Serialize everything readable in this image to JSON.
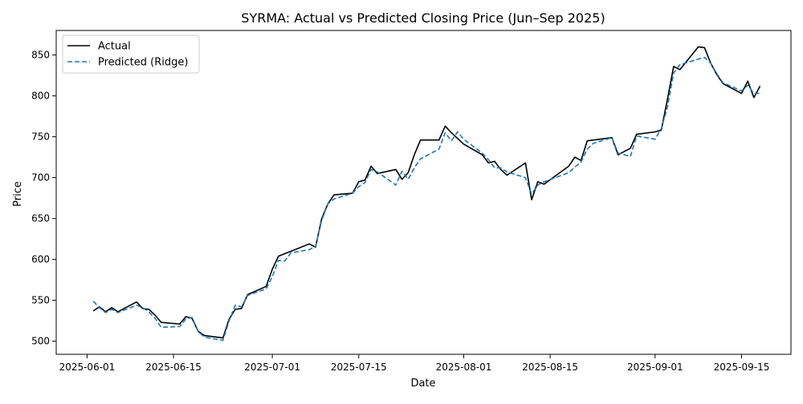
{
  "chart_data": {
    "type": "line",
    "title": "SYRMA: Actual vs Predicted Closing Price (Jun–Sep 2025)",
    "xlabel": "Date",
    "ylabel": "Price",
    "x_ticks": [
      "2025-06-01",
      "2025-06-15",
      "2025-07-01",
      "2025-07-15",
      "2025-08-01",
      "2025-08-15",
      "2025-09-01",
      "2025-09-15"
    ],
    "y_ticks": [
      500,
      550,
      600,
      650,
      700,
      750,
      800,
      850
    ],
    "xlim": [
      "2025-05-27",
      "2025-09-23"
    ],
    "ylim": [
      484,
      880
    ],
    "grid": false,
    "legend_position": "upper-left",
    "series": [
      {
        "name": "Actual",
        "color": "#000000",
        "style": "solid",
        "x": [
          "2025-06-02",
          "2025-06-03",
          "2025-06-04",
          "2025-06-05",
          "2025-06-06",
          "2025-06-09",
          "2025-06-10",
          "2025-06-11",
          "2025-06-12",
          "2025-06-13",
          "2025-06-16",
          "2025-06-17",
          "2025-06-18",
          "2025-06-19",
          "2025-06-20",
          "2025-06-23",
          "2025-06-24",
          "2025-06-25",
          "2025-06-26",
          "2025-06-27",
          "2025-06-30",
          "2025-07-01",
          "2025-07-02",
          "2025-07-03",
          "2025-07-04",
          "2025-07-07",
          "2025-07-08",
          "2025-07-09",
          "2025-07-10",
          "2025-07-11",
          "2025-07-14",
          "2025-07-15",
          "2025-07-16",
          "2025-07-17",
          "2025-07-18",
          "2025-07-21",
          "2025-07-22",
          "2025-07-23",
          "2025-07-24",
          "2025-07-25",
          "2025-07-28",
          "2025-07-29",
          "2025-07-30",
          "2025-07-31",
          "2025-08-01",
          "2025-08-04",
          "2025-08-05",
          "2025-08-06",
          "2025-08-07",
          "2025-08-08",
          "2025-08-11",
          "2025-08-12",
          "2025-08-13",
          "2025-08-14",
          "2025-08-18",
          "2025-08-19",
          "2025-08-20",
          "2025-08-21",
          "2025-08-22",
          "2025-08-25",
          "2025-08-26",
          "2025-08-28",
          "2025-08-29",
          "2025-09-01",
          "2025-09-02",
          "2025-09-03",
          "2025-09-04",
          "2025-09-05",
          "2025-09-08",
          "2025-09-09",
          "2025-09-10",
          "2025-09-11",
          "2025-09-12",
          "2025-09-15",
          "2025-09-16",
          "2025-09-17",
          "2025-09-18"
        ],
        "values": [
          537,
          542,
          536,
          541,
          536,
          548,
          540,
          539,
          532,
          523,
          521,
          530,
          528,
          512,
          507,
          504,
          527,
          539,
          540,
          557,
          567,
          588,
          604,
          607,
          610,
          619,
          615,
          650,
          668,
          679,
          681,
          695,
          697,
          714,
          705,
          710,
          698,
          706,
          728,
          746,
          746,
          763,
          755,
          748,
          741,
          728,
          718,
          720,
          710,
          703,
          718,
          673,
          695,
          692,
          714,
          725,
          721,
          745,
          746,
          749,
          728,
          736,
          753,
          756,
          758,
          796,
          836,
          832,
          860,
          859,
          840,
          826,
          815,
          803,
          818,
          798,
          812
        ]
      },
      {
        "name": "Predicted (Ridge)",
        "color": "#1f77b4",
        "style": "dashed",
        "x": [
          "2025-06-02",
          "2025-06-03",
          "2025-06-04",
          "2025-06-05",
          "2025-06-06",
          "2025-06-09",
          "2025-06-10",
          "2025-06-11",
          "2025-06-12",
          "2025-06-13",
          "2025-06-16",
          "2025-06-17",
          "2025-06-18",
          "2025-06-19",
          "2025-06-20",
          "2025-06-23",
          "2025-06-24",
          "2025-06-25",
          "2025-06-26",
          "2025-06-27",
          "2025-06-30",
          "2025-07-01",
          "2025-07-02",
          "2025-07-03",
          "2025-07-04",
          "2025-07-07",
          "2025-07-08",
          "2025-07-09",
          "2025-07-10",
          "2025-07-11",
          "2025-07-14",
          "2025-07-15",
          "2025-07-16",
          "2025-07-17",
          "2025-07-18",
          "2025-07-21",
          "2025-07-22",
          "2025-07-23",
          "2025-07-24",
          "2025-07-25",
          "2025-07-28",
          "2025-07-29",
          "2025-07-30",
          "2025-07-31",
          "2025-08-01",
          "2025-08-04",
          "2025-08-05",
          "2025-08-06",
          "2025-08-07",
          "2025-08-08",
          "2025-08-11",
          "2025-08-12",
          "2025-08-13",
          "2025-08-14",
          "2025-08-18",
          "2025-08-19",
          "2025-08-20",
          "2025-08-21",
          "2025-08-22",
          "2025-08-25",
          "2025-08-26",
          "2025-08-28",
          "2025-08-29",
          "2025-09-01",
          "2025-09-02",
          "2025-09-03",
          "2025-09-04",
          "2025-09-05",
          "2025-09-08",
          "2025-09-09",
          "2025-09-10",
          "2025-09-11",
          "2025-09-12",
          "2025-09-15",
          "2025-09-16",
          "2025-09-17",
          "2025-09-18"
        ],
        "values": [
          549,
          541,
          535,
          539,
          535,
          544,
          541,
          536,
          528,
          517,
          518,
          527,
          529,
          512,
          505,
          501,
          525,
          544,
          542,
          556,
          564,
          579,
          599,
          598,
          608,
          612,
          616,
          648,
          668,
          674,
          681,
          689,
          694,
          710,
          707,
          691,
          708,
          698,
          712,
          723,
          735,
          755,
          745,
          756,
          747,
          730,
          722,
          712,
          712,
          707,
          700,
          680,
          691,
          695,
          706,
          713,
          719,
          735,
          742,
          749,
          730,
          726,
          751,
          747,
          760,
          786,
          828,
          838,
          845,
          847,
          840,
          827,
          816,
          806,
          813,
          803,
          803
        ]
      }
    ]
  }
}
